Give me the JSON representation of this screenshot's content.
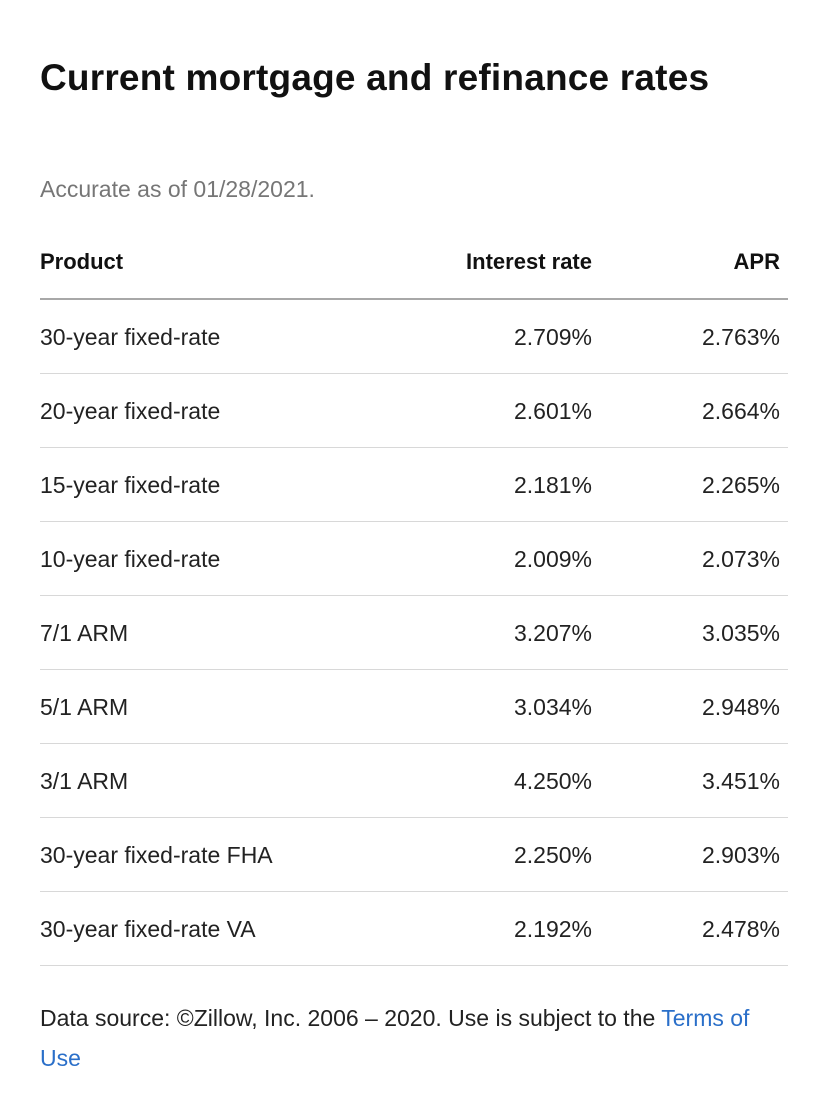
{
  "heading": {
    "title": "Current mortgage and refinance rates",
    "subtitle": "Accurate as of 01/28/2021."
  },
  "table": {
    "columns": [
      "Product",
      "Interest rate",
      "APR"
    ],
    "rows": [
      {
        "product": "30-year fixed-rate",
        "rate": "2.709%",
        "apr": "2.763%"
      },
      {
        "product": "20-year fixed-rate",
        "rate": "2.601%",
        "apr": "2.664%"
      },
      {
        "product": "15-year fixed-rate",
        "rate": "2.181%",
        "apr": "2.265%"
      },
      {
        "product": "10-year fixed-rate",
        "rate": "2.009%",
        "apr": "2.073%"
      },
      {
        "product": "7/1 ARM",
        "rate": "3.207%",
        "apr": "3.035%"
      },
      {
        "product": "5/1 ARM",
        "rate": "3.034%",
        "apr": "2.948%"
      },
      {
        "product": "3/1 ARM",
        "rate": "4.250%",
        "apr": "3.451%"
      },
      {
        "product": "30-year fixed-rate FHA",
        "rate": "2.250%",
        "apr": "2.903%"
      },
      {
        "product": "30-year fixed-rate VA",
        "rate": "2.192%",
        "apr": "2.478%"
      }
    ]
  },
  "footer": {
    "text_before": "Data source: ©Zillow, Inc. 2006 – 2020. Use is subject to the ",
    "link_label": "Terms of Use"
  },
  "colors": {
    "link": "#2a6fc9",
    "subtitle": "#767676",
    "header_rule": "#a8a8a8",
    "row_rule": "#d8d8d8"
  }
}
